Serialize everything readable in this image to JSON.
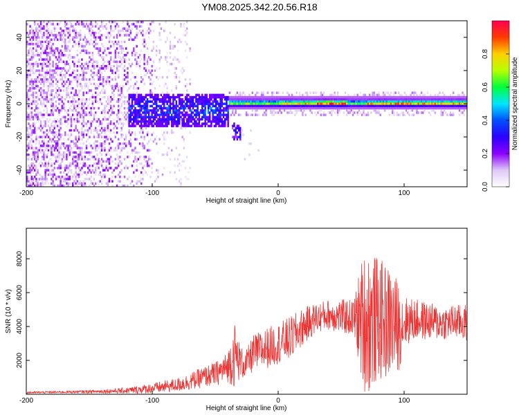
{
  "title": "YM08.2025.342.20.56.R18",
  "colors": {
    "line": "#ee3333",
    "colormap_stops": [
      "#ffffff",
      "#dfc8f5",
      "#8b00ff",
      "#2b00ff",
      "#0050ff",
      "#00e5ff",
      "#00ff3c",
      "#b8ff00",
      "#ffd000",
      "#ff3b00",
      "#ff0050"
    ]
  },
  "chart_data": [
    {
      "type": "heatmap",
      "name": "spectrogram",
      "xlabel": "Height of straight line (km)",
      "ylabel": "Frequency (Hz)",
      "xlim": [
        -200,
        150
      ],
      "ylim": [
        -50,
        50
      ],
      "xticks": [
        -200,
        -100,
        0,
        100
      ],
      "yticks": [
        -40,
        -20,
        0,
        20,
        40
      ],
      "colorbar": {
        "label": "Normalized spectral amplitude",
        "range": [
          0.0,
          1.0
        ],
        "ticks": [
          0.0,
          0.2,
          0.4,
          0.6,
          0.8
        ]
      },
      "features": [
        {
          "x_range": [
            -200,
            -100
          ],
          "freq_range": [
            -50,
            50
          ],
          "amplitude": 0.1,
          "description": "scattered broadband noise"
        },
        {
          "x_range": [
            -120,
            -40
          ],
          "freq_range": [
            -12,
            6
          ],
          "amplitude": 0.35,
          "description": "blue/cyan band"
        },
        {
          "x_range": [
            -38,
            -30
          ],
          "freq_range": [
            -20,
            -12
          ],
          "amplitude": 0.25,
          "description": "low-frequency tail"
        },
        {
          "x_range": [
            -30,
            150
          ],
          "freq_range": [
            -2,
            4
          ],
          "amplitude": 0.75,
          "description": "narrow high-amplitude line near 1 Hz"
        }
      ]
    },
    {
      "type": "line",
      "name": "snr",
      "xlabel": "Height of straight line (km)",
      "ylabel": "SNR (10 * v/v)",
      "xlim": [
        -200,
        150
      ],
      "ylim": [
        0,
        9800
      ],
      "xticks": [
        -200,
        -100,
        0,
        100
      ],
      "yticks": [
        2000,
        4000,
        6000,
        8000
      ],
      "series": [
        {
          "name": "SNR",
          "x": [
            -200,
            -180,
            -160,
            -140,
            -120,
            -100,
            -80,
            -70,
            -60,
            -50,
            -40,
            -35,
            -30,
            -26,
            -20,
            -10,
            0,
            10,
            20,
            30,
            40,
            50,
            60,
            66,
            70,
            80,
            90,
            96,
            100,
            110,
            120,
            130,
            140,
            150
          ],
          "base": [
            100,
            120,
            140,
            170,
            220,
            350,
            550,
            750,
            1000,
            1200,
            1600,
            2400,
            1900,
            1700,
            2400,
            2700,
            3000,
            3300,
            4000,
            4500,
            4700,
            4600,
            4500,
            4400,
            4300,
            4400,
            4200,
            4000,
            4300,
            4400,
            4300,
            4200,
            4300,
            4200
          ],
          "amp": [
            60,
            70,
            80,
            110,
            180,
            300,
            400,
            500,
            600,
            700,
            900,
            2000,
            1000,
            800,
            1100,
            1200,
            1200,
            1300,
            1100,
            900,
            900,
            1000,
            1100,
            3500,
            4500,
            3600,
            3300,
            2600,
            1500,
            1200,
            1100,
            1000,
            1000,
            1100
          ]
        }
      ]
    }
  ]
}
